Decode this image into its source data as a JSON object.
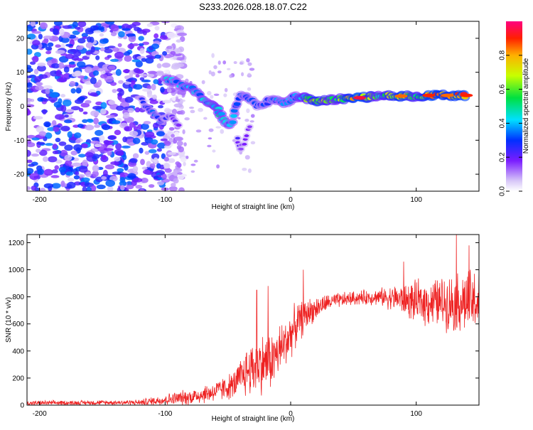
{
  "title": "S233.2026.028.18.07.C22",
  "chart_data": [
    {
      "type": "heatmap",
      "xlabel": "Height of straight line (km)",
      "ylabel": "Frequency (Hz)",
      "xlim": [
        -210,
        150
      ],
      "ylim": [
        -25,
        25
      ],
      "xticks": [
        -200,
        -100,
        0,
        100
      ],
      "yticks": [
        -20,
        -10,
        0,
        10,
        20
      ],
      "colorbar": {
        "label": "Normalized spectral amplitude",
        "range": [
          0.0,
          1.0
        ],
        "ticks": [
          "0.0",
          "0.2",
          "0.4",
          "0.6",
          "0.8"
        ],
        "tick_values": [
          0.0,
          0.2,
          0.4,
          0.6,
          0.8
        ]
      },
      "ridge": [
        {
          "x": -98,
          "f": 8,
          "amp": 0.45
        },
        {
          "x": -92,
          "f": 7,
          "amp": 0.4
        },
        {
          "x": -85,
          "f": 6,
          "amp": 0.4
        },
        {
          "x": -78,
          "f": 5,
          "amp": 0.45
        },
        {
          "x": -72,
          "f": 3,
          "amp": 0.4
        },
        {
          "x": -65,
          "f": 1,
          "amp": 0.45
        },
        {
          "x": -58,
          "f": -1,
          "amp": 0.5
        },
        {
          "x": -53,
          "f": -4,
          "amp": 0.45
        },
        {
          "x": -48,
          "f": -6,
          "amp": 0.4
        },
        {
          "x": -40,
          "f": 4,
          "amp": 0.35
        },
        {
          "x": -33,
          "f": 2,
          "amp": 0.35
        },
        {
          "x": -25,
          "f": 0,
          "amp": 0.3
        },
        {
          "x": -15,
          "f": 2,
          "amp": 0.35
        },
        {
          "x": -5,
          "f": 1,
          "amp": 0.4
        },
        {
          "x": 5,
          "f": 3,
          "amp": 0.4
        },
        {
          "x": 20,
          "f": 1.5,
          "amp": 0.8
        },
        {
          "x": 35,
          "f": 2,
          "amp": 0.55
        },
        {
          "x": 55,
          "f": 2.5,
          "amp": 0.95
        },
        {
          "x": 70,
          "f": 3,
          "amp": 0.55
        },
        {
          "x": 88,
          "f": 3,
          "amp": 0.85
        },
        {
          "x": 100,
          "f": 3,
          "amp": 0.6
        },
        {
          "x": 110,
          "f": 3.2,
          "amp": 0.9
        },
        {
          "x": 125,
          "f": 3.2,
          "amp": 0.85
        },
        {
          "x": 140,
          "f": 3.2,
          "amp": 0.9
        }
      ],
      "side_branches": [
        {
          "x": -120,
          "f": 2,
          "amp": 0.25
        },
        {
          "x": -110,
          "f": -2,
          "amp": 0.35
        },
        {
          "x": -104,
          "f": -4,
          "amp": 0.3
        },
        {
          "x": -95,
          "f": -3,
          "amp": 0.25
        },
        {
          "x": -88,
          "f": -6,
          "amp": 0.2
        },
        {
          "x": -42,
          "f": -10,
          "amp": 0.25
        },
        {
          "x": -40,
          "f": -13,
          "amp": 0.2
        },
        {
          "x": -32,
          "f": -5,
          "amp": 0.2
        }
      ],
      "noise_region": {
        "x_from": -210,
        "x_to": -100,
        "f_from": -25,
        "f_to": 25,
        "level": 0.2
      }
    },
    {
      "type": "line",
      "xlabel": "Height of straight line (km)",
      "ylabel": "SNR (10 * v/v)",
      "xlim": [
        -210,
        150
      ],
      "ylim": [
        0,
        1260
      ],
      "xticks": [
        -200,
        -100,
        0,
        100
      ],
      "yticks": [
        0,
        200,
        400,
        600,
        800,
        1000,
        1200
      ],
      "color": "#ee2222",
      "envelope": [
        {
          "x": -210,
          "y": 15,
          "spread": 20
        },
        {
          "x": -140,
          "y": 20,
          "spread": 20
        },
        {
          "x": -120,
          "y": 20,
          "spread": 25
        },
        {
          "x": -100,
          "y": 40,
          "spread": 50
        },
        {
          "x": -80,
          "y": 60,
          "spread": 70
        },
        {
          "x": -60,
          "y": 100,
          "spread": 90
        },
        {
          "x": -45,
          "y": 150,
          "spread": 120
        },
        {
          "x": -35,
          "y": 250,
          "spread": 220
        },
        {
          "x": -25,
          "y": 300,
          "spread": 260
        },
        {
          "x": -15,
          "y": 330,
          "spread": 250
        },
        {
          "x": -5,
          "y": 450,
          "spread": 220
        },
        {
          "x": 5,
          "y": 600,
          "spread": 180
        },
        {
          "x": 15,
          "y": 690,
          "spread": 120
        },
        {
          "x": 30,
          "y": 760,
          "spread": 70
        },
        {
          "x": 50,
          "y": 790,
          "spread": 60
        },
        {
          "x": 70,
          "y": 800,
          "spread": 70
        },
        {
          "x": 85,
          "y": 790,
          "spread": 120
        },
        {
          "x": 100,
          "y": 760,
          "spread": 180
        },
        {
          "x": 120,
          "y": 760,
          "spread": 220
        },
        {
          "x": 140,
          "y": 760,
          "spread": 280
        },
        {
          "x": 150,
          "y": 760,
          "spread": 300
        }
      ],
      "spikes": [
        {
          "x": -27,
          "y": 850
        },
        {
          "x": -18,
          "y": 880
        },
        {
          "x": 10,
          "y": 1000
        },
        {
          "x": 90,
          "y": 1060
        },
        {
          "x": 132,
          "y": 1260
        },
        {
          "x": 142,
          "y": 1180
        }
      ]
    }
  ]
}
